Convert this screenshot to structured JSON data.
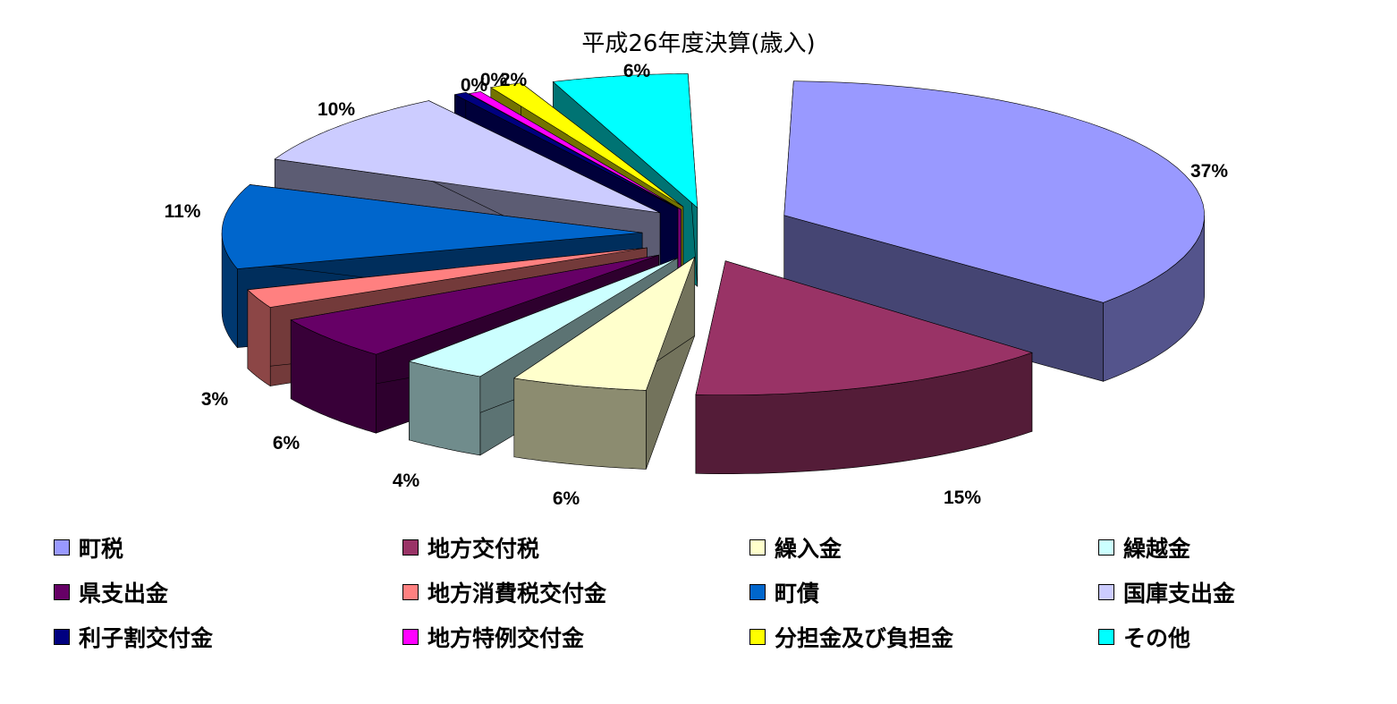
{
  "chart_data": {
    "type": "pie",
    "title": "平成26年度決算(歳入)",
    "slices": [
      {
        "name": "町税",
        "percent": 37,
        "label": "37%",
        "color": "#9999FF"
      },
      {
        "name": "地方交付税",
        "percent": 15,
        "label": "15%",
        "color": "#993366"
      },
      {
        "name": "繰入金",
        "percent": 6,
        "label": "6%",
        "color": "#FFFFCC"
      },
      {
        "name": "繰越金",
        "percent": 4,
        "label": "4%",
        "color": "#CCFFFF"
      },
      {
        "name": "県支出金",
        "percent": 6,
        "label": "6%",
        "color": "#660066"
      },
      {
        "name": "地方消費税交付金",
        "percent": 3,
        "label": "3%",
        "color": "#FF8080"
      },
      {
        "name": "町債",
        "percent": 11,
        "label": "11%",
        "color": "#0066CC"
      },
      {
        "name": "国庫支出金",
        "percent": 10,
        "label": "10%",
        "color": "#CCCCFF"
      },
      {
        "name": "利子割交付金",
        "percent": 0,
        "label": "0%",
        "color": "#000080"
      },
      {
        "name": "地方特例交付金",
        "percent": 0,
        "label": "0%",
        "color": "#FF00FF"
      },
      {
        "name": "分担金及び負担金",
        "percent": 2,
        "label": "2%",
        "color": "#FFFF00"
      },
      {
        "name": "その他",
        "percent": 6,
        "label": "6%",
        "color": "#00FFFF"
      }
    ],
    "legend_position": "bottom"
  },
  "legend": [
    {
      "label": "町税"
    },
    {
      "label": "地方交付税"
    },
    {
      "label": "繰入金"
    },
    {
      "label": "繰越金"
    },
    {
      "label": "県支出金"
    },
    {
      "label": "地方消費税交付金"
    },
    {
      "label": "町債"
    },
    {
      "label": "国庫支出金"
    },
    {
      "label": "利子割交付金"
    },
    {
      "label": "地方特例交付金"
    },
    {
      "label": "分担金及び負担金"
    },
    {
      "label": "その他"
    }
  ]
}
